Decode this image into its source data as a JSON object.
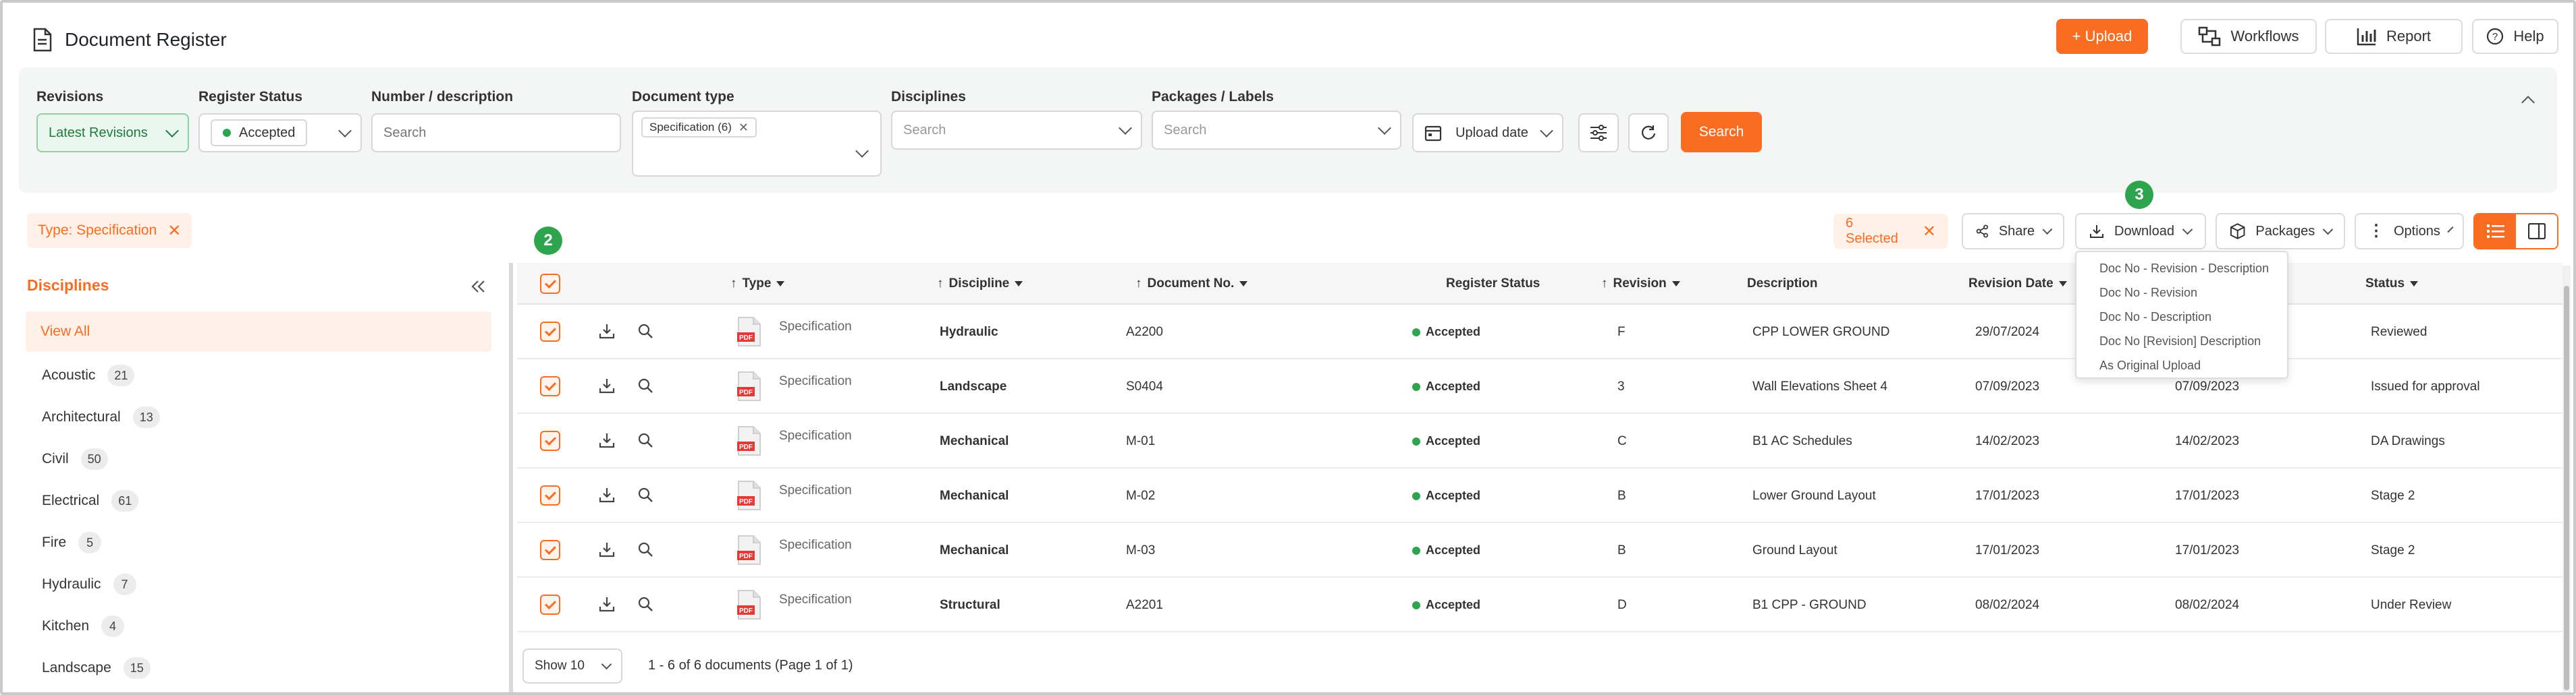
{
  "header": {
    "title": "Document Register",
    "upload_label": "+ Upload",
    "workflows_label": "Workflows",
    "report_label": "Report",
    "help_label": "Help"
  },
  "filters": {
    "revisions": {
      "label": "Revisions",
      "value": "Latest Revisions"
    },
    "register_status": {
      "label": "Register Status",
      "value": "Accepted"
    },
    "number_description": {
      "label": "Number / description",
      "placeholder": "Search"
    },
    "document_type": {
      "label": "Document type",
      "tag": "Specification (6)"
    },
    "disciplines": {
      "label": "Disciplines",
      "placeholder": "Search"
    },
    "packages": {
      "label": "Packages / Labels",
      "placeholder": "Search"
    },
    "upload_date": "Upload date",
    "search_label": "Search"
  },
  "active_filter": "Type: Specification",
  "toolbar": {
    "selected": "6 Selected",
    "share": "Share",
    "download": "Download",
    "packages": "Packages",
    "options": "Options",
    "step2": "2",
    "step3": "3"
  },
  "download_menu": [
    "Doc No - Revision - Description",
    "Doc No - Revision",
    "Doc No - Description",
    "Doc No [Revision] Description",
    "As Original Upload"
  ],
  "sidebar": {
    "title": "Disciplines",
    "view_all": "View All",
    "items": [
      {
        "label": "Acoustic",
        "count": "21"
      },
      {
        "label": "Architectural",
        "count": "13"
      },
      {
        "label": "Civil",
        "count": "50"
      },
      {
        "label": "Electrical",
        "count": "61"
      },
      {
        "label": "Fire",
        "count": "5"
      },
      {
        "label": "Hydraulic",
        "count": "7"
      },
      {
        "label": "Kitchen",
        "count": "4"
      },
      {
        "label": "Landscape",
        "count": "15"
      }
    ]
  },
  "table": {
    "headers": {
      "type": "Type",
      "discipline": "Discipline",
      "doc_no": "Document No.",
      "register_status": "Register Status",
      "revision": "Revision",
      "description": "Description",
      "revision_date": "Revision Date",
      "status": "Status"
    },
    "rows": [
      {
        "type": "Specification",
        "discipline": "Hydraulic",
        "doc_no": "A2200",
        "register_status": "Accepted",
        "revision": "F",
        "description": "CPP LOWER GROUND",
        "revision_date": "29/07/2024",
        "upload_date": "",
        "status": "Reviewed"
      },
      {
        "type": "Specification",
        "discipline": "Landscape",
        "doc_no": "S0404",
        "register_status": "Accepted",
        "revision": "3",
        "description": "Wall Elevations Sheet 4",
        "revision_date": "07/09/2023",
        "upload_date": "07/09/2023",
        "status": "Issued for approval"
      },
      {
        "type": "Specification",
        "discipline": "Mechanical",
        "doc_no": "M-01",
        "register_status": "Accepted",
        "revision": "C",
        "description": "B1 AC Schedules",
        "revision_date": "14/02/2023",
        "upload_date": "14/02/2023",
        "status": "DA Drawings"
      },
      {
        "type": "Specification",
        "discipline": "Mechanical",
        "doc_no": "M-02",
        "register_status": "Accepted",
        "revision": "B",
        "description": "Lower Ground Layout",
        "revision_date": "17/01/2023",
        "upload_date": "17/01/2023",
        "status": "Stage 2"
      },
      {
        "type": "Specification",
        "discipline": "Mechanical",
        "doc_no": "M-03",
        "register_status": "Accepted",
        "revision": "B",
        "description": "Ground Layout",
        "revision_date": "17/01/2023",
        "upload_date": "17/01/2023",
        "status": "Stage 2"
      },
      {
        "type": "Specification",
        "discipline": "Structural",
        "doc_no": "A2201",
        "register_status": "Accepted",
        "revision": "D",
        "description": "B1 CPP - GROUND",
        "revision_date": "08/02/2024",
        "upload_date": "08/02/2024",
        "status": "Under Review"
      }
    ]
  },
  "pager": {
    "show": "Show 10",
    "summary": "1 - 6 of 6 documents (Page 1 of 1)"
  },
  "colors": {
    "accent": "#fb6c23",
    "success": "#2ea44f"
  }
}
